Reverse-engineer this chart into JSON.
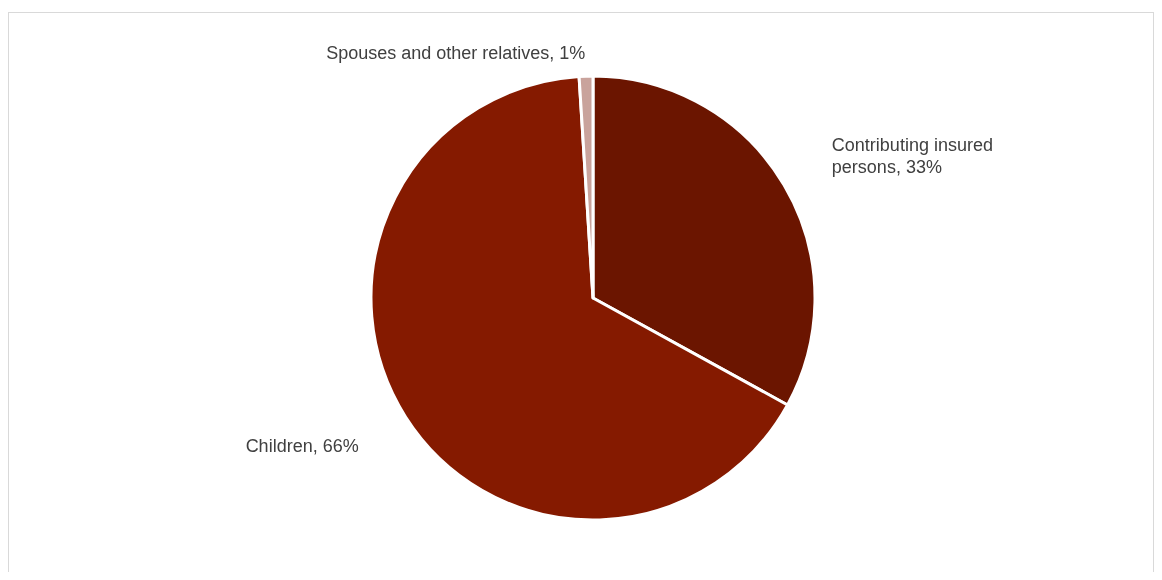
{
  "chart_data": {
    "type": "pie",
    "categories": [
      "Contributing insured persons",
      "Children",
      "Spouses and other relatives"
    ],
    "values": [
      33,
      66,
      1
    ],
    "colors": [
      "#6b1500",
      "#851a00",
      "#c9a39c"
    ],
    "value_labels": [
      "33%",
      "66%",
      "1%"
    ]
  }
}
